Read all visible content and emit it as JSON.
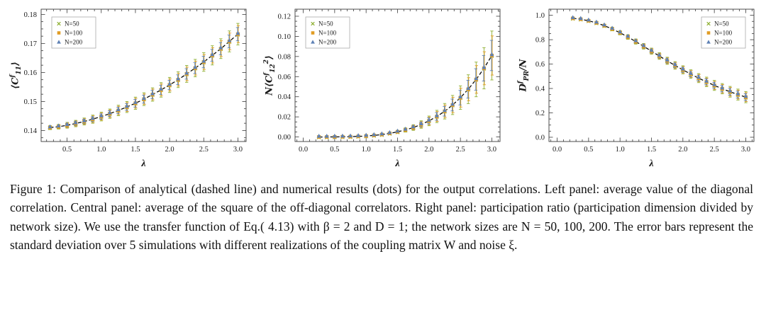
{
  "caption": {
    "text": "Figure 1: Comparison of analytical (dashed line) and numerical results (dots) for the output correlations. Left panel: average value of the diagonal correlation. Central panel: average of the square of the off-diagonal correlators. Right panel: participation ratio (participation dimension divided by network size). We use the transfer function of Eq.( 4.13) with β = 2 and D = 1; the network sizes are N = 50, 100, 200. The error bars represent the standard deviation over 5 simulations with different realizations of the coupling matrix W and noise ξ."
  },
  "colors": {
    "n50": "#8FB032",
    "n100": "#E19C24",
    "n200": "#5E81B5",
    "analytical_line": "#000000",
    "frame": "#3a3a3a"
  },
  "chart_data": [
    {
      "type": "line+scatter",
      "xlabel": "λ",
      "ylabel": [
        {
          "t": "⟨C"
        },
        {
          "t": "f",
          "pos": "sup"
        },
        {
          "t": "11",
          "pos": "sub"
        },
        {
          "t": "⟩"
        }
      ],
      "xlim": [
        0.12,
        3.12
      ],
      "ylim": [
        0.1362,
        0.1818
      ],
      "x_ticks": [
        0.5,
        1.0,
        1.5,
        2.0,
        2.5,
        3.0
      ],
      "x_tick_labels": [
        "0.5",
        "1.0",
        "1.5",
        "2.0",
        "2.5",
        "3.0"
      ],
      "x_minor_step": 0.1,
      "y_ticks": [
        0.14,
        0.15,
        0.16,
        0.17,
        0.18
      ],
      "y_tick_labels": [
        "0.14",
        "0.15",
        "0.16",
        "0.17",
        "0.18"
      ],
      "y_minor_step": 0.0025,
      "legend_pos": "left",
      "x": [
        0.25,
        0.375,
        0.5,
        0.625,
        0.75,
        0.875,
        1.0,
        1.125,
        1.25,
        1.375,
        1.5,
        1.625,
        1.75,
        1.875,
        2.0,
        2.125,
        2.25,
        2.375,
        2.5,
        2.625,
        2.75,
        2.875,
        3.0
      ],
      "analytical": [
        0.141,
        0.1413,
        0.1418,
        0.1424,
        0.1431,
        0.1439,
        0.1448,
        0.1458,
        0.1469,
        0.1481,
        0.1494,
        0.1508,
        0.1524,
        0.154,
        0.1557,
        0.1575,
        0.1595,
        0.1615,
        0.1636,
        0.1659,
        0.1682,
        0.1707,
        0.1732
      ],
      "err": [
        0.0007,
        0.0008,
        0.001,
        0.0011,
        0.0012,
        0.0014,
        0.0015,
        0.0016,
        0.0018,
        0.0019,
        0.0021,
        0.0022,
        0.0023,
        0.0025,
        0.0026,
        0.0027,
        0.0029,
        0.003,
        0.0032,
        0.0033,
        0.0034,
        0.0036,
        0.0037
      ],
      "series": [
        {
          "label": "N=50",
          "marker": "cross",
          "color": "#8FB032"
        },
        {
          "label": "N=100",
          "marker": "square",
          "color": "#E19C24"
        },
        {
          "label": "N=200",
          "marker": "triangle",
          "color": "#5E81B5"
        }
      ]
    },
    {
      "type": "line+scatter",
      "xlabel": "λ",
      "ylabel": [
        {
          "t": "N⟨C"
        },
        {
          "t": "f",
          "pos": "sup"
        },
        {
          "t": "12",
          "pos": "sub"
        },
        {
          "t": "2",
          "pos": "sup"
        },
        {
          "t": "⟩"
        }
      ],
      "xlim": [
        -0.13,
        3.13
      ],
      "ylim": [
        -0.0045,
        0.127
      ],
      "x_ticks": [
        0.0,
        0.5,
        1.0,
        1.5,
        2.0,
        2.5,
        3.0
      ],
      "x_tick_labels": [
        "0.0",
        "0.5",
        "1.0",
        "1.5",
        "2.0",
        "2.5",
        "3.0"
      ],
      "x_minor_step": 0.1,
      "y_ticks": [
        0.0,
        0.02,
        0.04,
        0.06,
        0.08,
        0.1,
        0.12
      ],
      "y_tick_labels": [
        "0.00",
        "0.02",
        "0.04",
        "0.06",
        "0.08",
        "0.10",
        "0.12"
      ],
      "y_minor_step": 0.005,
      "legend_pos": "left",
      "x": [
        0.25,
        0.375,
        0.5,
        0.625,
        0.75,
        0.875,
        1.0,
        1.125,
        1.25,
        1.375,
        1.5,
        1.625,
        1.75,
        1.875,
        2.0,
        2.125,
        2.25,
        2.375,
        2.5,
        2.625,
        2.75,
        2.875,
        3.0
      ],
      "analytical": [
        0.0,
        0.0,
        0.0001,
        0.0002,
        0.0003,
        0.0006,
        0.001,
        0.0016,
        0.0024,
        0.0036,
        0.0051,
        0.007,
        0.0094,
        0.0124,
        0.016,
        0.0204,
        0.0256,
        0.0318,
        0.0391,
        0.0475,
        0.0572,
        0.0683,
        0.081
      ],
      "err": [
        0.0,
        0.0,
        0.0,
        0.0,
        0.0001,
        0.0002,
        0.0003,
        0.0005,
        0.0007,
        0.0011,
        0.0015,
        0.0021,
        0.0028,
        0.0037,
        0.0048,
        0.0061,
        0.0077,
        0.0095,
        0.0117,
        0.0143,
        0.0172,
        0.0205,
        0.0243
      ],
      "series": [
        {
          "label": "N=50",
          "marker": "cross",
          "color": "#8FB032"
        },
        {
          "label": "N=100",
          "marker": "square",
          "color": "#E19C24"
        },
        {
          "label": "N=200",
          "marker": "triangle",
          "color": "#5E81B5"
        }
      ]
    },
    {
      "type": "line+scatter",
      "xlabel": "λ",
      "ylabel": [
        {
          "t": "D"
        },
        {
          "t": "f",
          "pos": "sup"
        },
        {
          "t": "PR",
          "pos": "sub"
        },
        {
          "t": "/N"
        }
      ],
      "xlim": [
        -0.13,
        3.13
      ],
      "ylim": [
        -0.035,
        1.05
      ],
      "x_ticks": [
        0.0,
        0.5,
        1.0,
        1.5,
        2.0,
        2.5,
        3.0
      ],
      "x_tick_labels": [
        "0.0",
        "0.5",
        "1.0",
        "1.5",
        "2.0",
        "2.5",
        "3.0"
      ],
      "x_minor_step": 0.1,
      "y_ticks": [
        0.0,
        0.2,
        0.4,
        0.6,
        0.8,
        1.0
      ],
      "y_tick_labels": [
        "0.0",
        "0.2",
        "0.4",
        "0.6",
        "0.8",
        "1.0"
      ],
      "y_minor_step": 0.05,
      "legend_pos": "right",
      "x": [
        0.25,
        0.375,
        0.5,
        0.625,
        0.75,
        0.875,
        1.0,
        1.125,
        1.25,
        1.375,
        1.5,
        1.625,
        1.75,
        1.875,
        2.0,
        2.125,
        2.25,
        2.375,
        2.5,
        2.625,
        2.75,
        2.875,
        3.0
      ],
      "analytical": [
        0.975,
        0.968,
        0.955,
        0.938,
        0.915,
        0.888,
        0.857,
        0.822,
        0.785,
        0.746,
        0.706,
        0.666,
        0.627,
        0.589,
        0.553,
        0.518,
        0.485,
        0.454,
        0.425,
        0.398,
        0.373,
        0.35,
        0.329
      ],
      "err": [
        0.008,
        0.009,
        0.01,
        0.012,
        0.013,
        0.015,
        0.017,
        0.019,
        0.021,
        0.023,
        0.025,
        0.027,
        0.029,
        0.031,
        0.033,
        0.035,
        0.037,
        0.039,
        0.041,
        0.042,
        0.044,
        0.045,
        0.046
      ],
      "series": [
        {
          "label": "N=50",
          "marker": "cross",
          "color": "#8FB032"
        },
        {
          "label": "N=100",
          "marker": "square",
          "color": "#E19C24"
        },
        {
          "label": "N=200",
          "marker": "triangle",
          "color": "#5E81B5"
        }
      ]
    }
  ]
}
